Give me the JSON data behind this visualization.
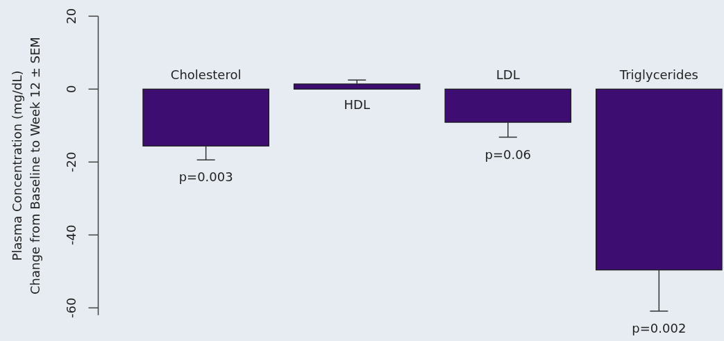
{
  "chart_data": {
    "type": "bar",
    "ylabel": "Plasma Concentration (mg/dL)\nChange from Baseline to Week 12 ± SEM",
    "categories": [
      "Cholesterol",
      "HDL",
      "LDL",
      "Triglycerides"
    ],
    "values": [
      -15.6,
      1.4,
      -9.1,
      -49.6
    ],
    "color": "#3d0d72",
    "errors": [
      [
        -19.4,
        -15.6
      ],
      [
        1.4,
        2.5
      ],
      [
        -13.2,
        -9.1
      ],
      [
        -60.9,
        -49.6
      ]
    ],
    "ylim": [
      -62,
      20
    ],
    "yticks": [
      -60,
      -40,
      -20,
      0,
      20
    ],
    "annotations": [
      {
        "text": "p=0.003",
        "x": "Cholesterol",
        "y": -19.4
      },
      {
        "text": "p=0.06",
        "x": "LDL",
        "y": -13.2
      },
      {
        "text": "p=0.002",
        "x": "Triglycerides",
        "y": -60.9
      }
    ]
  }
}
